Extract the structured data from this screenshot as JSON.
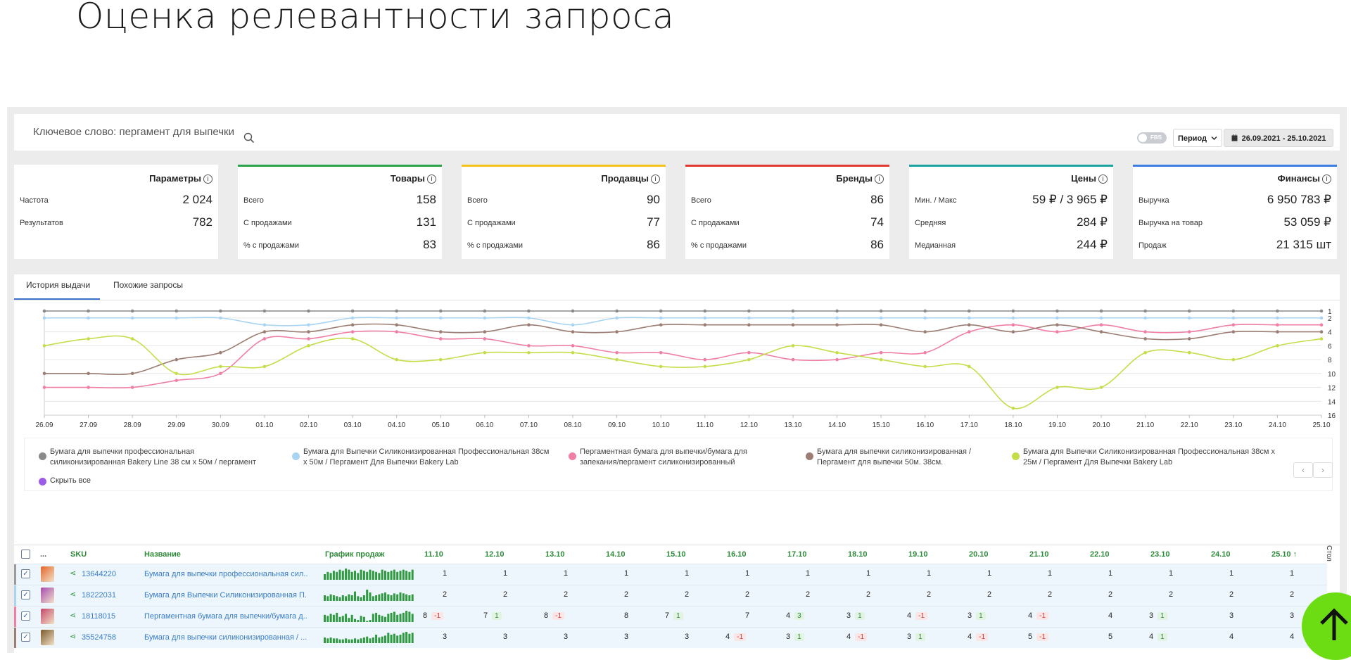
{
  "slide_title": "Оценка релевантности запроса",
  "search": {
    "text": "Ключевое слово: пергамент для выпечки",
    "icon": "search-icon"
  },
  "controls": {
    "fbs_label": "FBS",
    "period_label": "Период",
    "date_range": "26.09.2021 - 25.10.2021"
  },
  "cards": [
    {
      "title": "Параметры",
      "color": "#ffffff",
      "rows": [
        {
          "label": "Частота",
          "value": "2 024"
        },
        {
          "label": "Результатов",
          "value": "782"
        }
      ]
    },
    {
      "title": "Товары",
      "color": "#2aa24a",
      "rows": [
        {
          "label": "Всего",
          "value": "158"
        },
        {
          "label": "С продажами",
          "value": "131"
        },
        {
          "label": "% с продажами",
          "value": "83"
        }
      ]
    },
    {
      "title": "Продавцы",
      "color": "#f2c31a",
      "rows": [
        {
          "label": "Всего",
          "value": "90"
        },
        {
          "label": "С продажами",
          "value": "77"
        },
        {
          "label": "% с продажами",
          "value": "86"
        }
      ]
    },
    {
      "title": "Бренды",
      "color": "#e03b32",
      "rows": [
        {
          "label": "Всего",
          "value": "86"
        },
        {
          "label": "С продажами",
          "value": "74"
        },
        {
          "label": "% с продажами",
          "value": "86"
        }
      ]
    },
    {
      "title": "Цены",
      "color": "#1ea3a0",
      "rows": [
        {
          "label": "Мин. / Макс",
          "value": "59 ₽ / 3 965 ₽"
        },
        {
          "label": "Средняя",
          "value": "284 ₽"
        },
        {
          "label": "Медианная",
          "value": "244 ₽"
        }
      ]
    },
    {
      "title": "Финансы",
      "color": "#3e7de0",
      "rows": [
        {
          "label": "Выручка",
          "value": "6 950 783 ₽"
        },
        {
          "label": "Выручка на товар",
          "value": "53 059 ₽"
        },
        {
          "label": "Продаж",
          "value": "21 315 шт"
        }
      ]
    }
  ],
  "tabs": [
    {
      "label": "История выдачи",
      "active": true
    },
    {
      "label": "Похожие запросы",
      "active": false
    }
  ],
  "chart_data": {
    "type": "line",
    "x": [
      "26.09",
      "27.09",
      "28.09",
      "29.09",
      "30.09",
      "01.10",
      "02.10",
      "03.10",
      "04.10",
      "05.10",
      "06.10",
      "07.10",
      "08.10",
      "09.10",
      "10.10",
      "11.10",
      "12.10",
      "13.10",
      "14.10",
      "15.10",
      "16.10",
      "17.10",
      "18.10",
      "19.10",
      "20.10",
      "21.10",
      "22.10",
      "23.10",
      "24.10",
      "25.10"
    ],
    "y_ticks": [
      1,
      2,
      4,
      6,
      8,
      10,
      12,
      14,
      16
    ],
    "ylim": [
      1,
      16
    ],
    "y_inverted": true,
    "y_axis_side": "right",
    "grid": true,
    "series": [
      {
        "name": "Бумага для выпечки профессиональная силиконизированная Bakery Line 38 см х 50м / пергамент",
        "color": "#8a8a8a",
        "values": [
          1,
          1,
          1,
          1,
          1,
          1,
          1,
          1,
          1,
          1,
          1,
          1,
          1,
          1,
          1,
          1,
          1,
          1,
          1,
          1,
          1,
          1,
          1,
          1,
          1,
          1,
          1,
          1,
          1,
          1
        ]
      },
      {
        "name": "Бумага для Выпечки Силиконизированная Профессиональная 38см х 50м / Пергамент Для Выпечки Bakery Lab",
        "color": "#a9d4f2",
        "values": [
          2,
          2,
          2,
          2,
          2,
          3,
          3,
          2,
          2,
          2,
          2,
          2,
          3,
          2,
          2,
          2,
          2,
          2,
          2,
          2,
          2,
          2,
          2,
          2,
          2,
          2,
          2,
          2,
          2,
          2
        ]
      },
      {
        "name": "Пергаментная бумага для выпечки/бумага для запекания/пергамент силиконизированный",
        "color": "#f07fa6",
        "values": [
          12,
          12,
          12,
          11,
          10,
          5,
          5,
          4,
          4,
          5,
          5,
          6,
          6,
          7,
          7,
          8,
          7,
          8,
          8,
          7,
          7,
          4,
          3,
          4,
          3,
          4,
          4,
          3,
          3,
          3
        ]
      },
      {
        "name": "Бумага для выпечки силиконизированная / Пергамент для выпечки 50м. 38см.",
        "color": "#9d7e74",
        "values": [
          10,
          10,
          10,
          8,
          7,
          4,
          4,
          3,
          3,
          4,
          4,
          3,
          4,
          4,
          3,
          3,
          3,
          3,
          3,
          3,
          4,
          3,
          4,
          3,
          4,
          5,
          5,
          4,
          4,
          4
        ]
      },
      {
        "name": "Бумага для Выпечки Силиконизированная Профессиональная 38см х 25м / Пергамент Для Выпечки Bakery Lab",
        "color": "#c6dd4a",
        "values": [
          6,
          5,
          5,
          10,
          9,
          9,
          6,
          5,
          8,
          8,
          7,
          7,
          7,
          8,
          9,
          9,
          8,
          6,
          7,
          8,
          9,
          9,
          15,
          12,
          12,
          7,
          7,
          8,
          6,
          5
        ]
      }
    ]
  },
  "legend": {
    "hide_all": "Скрыть все",
    "hide_color": "#9b5de5",
    "prev": "‹",
    "next": "›"
  },
  "table": {
    "headers": {
      "dots": "...",
      "sku": "SKU",
      "name": "Название",
      "sales_chart": "График продаж"
    },
    "date_columns": [
      "11.10",
      "12.10",
      "13.10",
      "14.10",
      "15.10",
      "16.10",
      "17.10",
      "18.10",
      "19.10",
      "20.10",
      "21.10",
      "22.10",
      "23.10",
      "24.10",
      "25.10 ↑"
    ],
    "columns_toggle": "Стол",
    "rows": [
      {
        "sku": "13644220",
        "name": "Бумага для выпечки профессиональная сил...",
        "mark": "#9b9b9b",
        "thumb": "#e2662b",
        "cells": [
          [
            "1",
            ""
          ],
          [
            "1",
            ""
          ],
          [
            "1",
            ""
          ],
          [
            "1",
            ""
          ],
          [
            "1",
            ""
          ],
          [
            "1",
            ""
          ],
          [
            "1",
            ""
          ],
          [
            "1",
            ""
          ],
          [
            "1",
            ""
          ],
          [
            "1",
            ""
          ],
          [
            "1",
            ""
          ],
          [
            "1",
            ""
          ],
          [
            "1",
            ""
          ],
          [
            "1",
            ""
          ],
          [
            "1",
            ""
          ]
        ],
        "sales": [
          5,
          7,
          6,
          8,
          7,
          9,
          8,
          10,
          9,
          7,
          8,
          6,
          9,
          8,
          7,
          9,
          8,
          7,
          6,
          9,
          8,
          7,
          8,
          9,
          7,
          8,
          9,
          8,
          7,
          9
        ]
      },
      {
        "sku": "18222031",
        "name": "Бумага для Выпечки Силиконизированная П...",
        "mark": "#a9d4f2",
        "thumb": "#a64db0",
        "cells": [
          [
            "2",
            ""
          ],
          [
            "2",
            ""
          ],
          [
            "2",
            ""
          ],
          [
            "2",
            ""
          ],
          [
            "2",
            ""
          ],
          [
            "2",
            ""
          ],
          [
            "2",
            ""
          ],
          [
            "2",
            ""
          ],
          [
            "2",
            ""
          ],
          [
            "2",
            ""
          ],
          [
            "2",
            ""
          ],
          [
            "2",
            ""
          ],
          [
            "2",
            ""
          ],
          [
            "2",
            ""
          ],
          [
            "2",
            ""
          ]
        ],
        "sales": [
          6,
          5,
          7,
          6,
          5,
          4,
          6,
          5,
          7,
          6,
          10,
          5,
          4,
          6,
          12,
          9,
          5,
          6,
          7,
          8,
          9,
          7,
          6,
          8,
          7,
          9,
          8,
          7,
          6,
          7
        ]
      },
      {
        "sku": "18118015",
        "name": "Пергаментная бумага для выпечки/бумага д...",
        "mark": "#f07fa6",
        "thumb": "#c4486a",
        "cells": [
          [
            "8",
            "-1"
          ],
          [
            "7",
            "1"
          ],
          [
            "8",
            "-1"
          ],
          [
            "8",
            ""
          ],
          [
            "7",
            "1"
          ],
          [
            "7",
            ""
          ],
          [
            "4",
            "3"
          ],
          [
            "3",
            "1"
          ],
          [
            "4",
            "-1"
          ],
          [
            "3",
            "1"
          ],
          [
            "4",
            "-1"
          ],
          [
            "4",
            ""
          ],
          [
            "3",
            "1"
          ],
          [
            "3",
            ""
          ],
          [
            "3",
            ""
          ]
        ],
        "sales": [
          7,
          6,
          8,
          7,
          9,
          5,
          6,
          8,
          4,
          7,
          3,
          2,
          6,
          5,
          1,
          2,
          8,
          9,
          7,
          6,
          5,
          8,
          9,
          10,
          7,
          8,
          9,
          11,
          10,
          8
        ]
      },
      {
        "sku": "35524758",
        "name": "Бумага для выпечки силиконизированная / ...",
        "mark": "#9d7e74",
        "thumb": "#7a5a2a",
        "cells": [
          [
            "3",
            ""
          ],
          [
            "3",
            ""
          ],
          [
            "3",
            ""
          ],
          [
            "3",
            ""
          ],
          [
            "3",
            ""
          ],
          [
            "4",
            "-1"
          ],
          [
            "3",
            "1"
          ],
          [
            "4",
            "-1"
          ],
          [
            "3",
            "1"
          ],
          [
            "4",
            "-1"
          ],
          [
            "5",
            "-1"
          ],
          [
            "5",
            ""
          ],
          [
            "4",
            "1"
          ],
          [
            "4",
            ""
          ],
          [
            "4",
            ""
          ]
        ],
        "sales": [
          6,
          5,
          6,
          5,
          5,
          4,
          4,
          5,
          4,
          4,
          5,
          4,
          5,
          6,
          7,
          5,
          6,
          9,
          6,
          7,
          8,
          11,
          9,
          10,
          8,
          9,
          11,
          12,
          10,
          11
        ]
      }
    ]
  },
  "fab": {
    "icon": "arrow-up-icon",
    "color": "#6ddd13"
  }
}
